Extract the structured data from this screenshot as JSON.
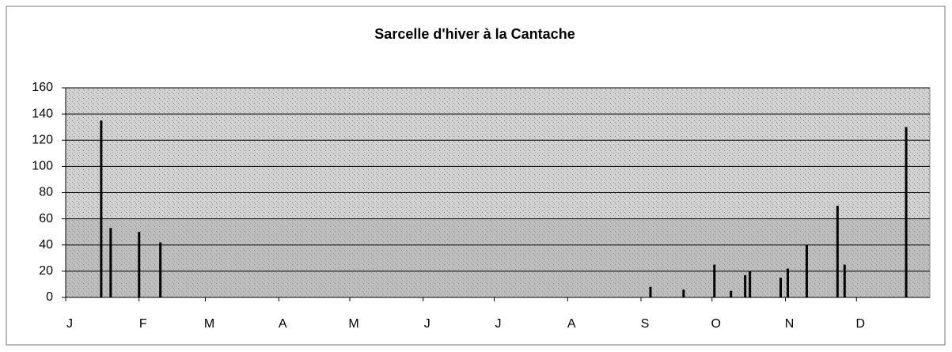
{
  "chart_data": {
    "type": "bar",
    "title": "Sarcelle d'hiver à la Cantache",
    "x": [
      15,
      19,
      31,
      40,
      247,
      261,
      274,
      281,
      287,
      289,
      302,
      305,
      313,
      326,
      329,
      355
    ],
    "values": [
      135,
      53,
      50,
      42,
      8,
      6,
      25,
      5,
      17,
      20,
      15,
      22,
      40,
      70,
      25,
      130
    ],
    "color": "#000000",
    "xlim": [
      0,
      365
    ],
    "xticks": [
      {
        "value": 0,
        "label": "J"
      },
      {
        "value": 31,
        "label": "F"
      },
      {
        "value": 59,
        "label": "M"
      },
      {
        "value": 90,
        "label": "A"
      },
      {
        "value": 120,
        "label": "M"
      },
      {
        "value": 151,
        "label": "J"
      },
      {
        "value": 181,
        "label": "J"
      },
      {
        "value": 212,
        "label": "A"
      },
      {
        "value": 243,
        "label": "S"
      },
      {
        "value": 273,
        "label": "O"
      },
      {
        "value": 304,
        "label": "N"
      },
      {
        "value": 334,
        "label": "D"
      }
    ],
    "ylim": [
      0,
      160
    ],
    "yticks": [
      0,
      20,
      40,
      60,
      80,
      100,
      120,
      140,
      160
    ],
    "grid": true
  }
}
